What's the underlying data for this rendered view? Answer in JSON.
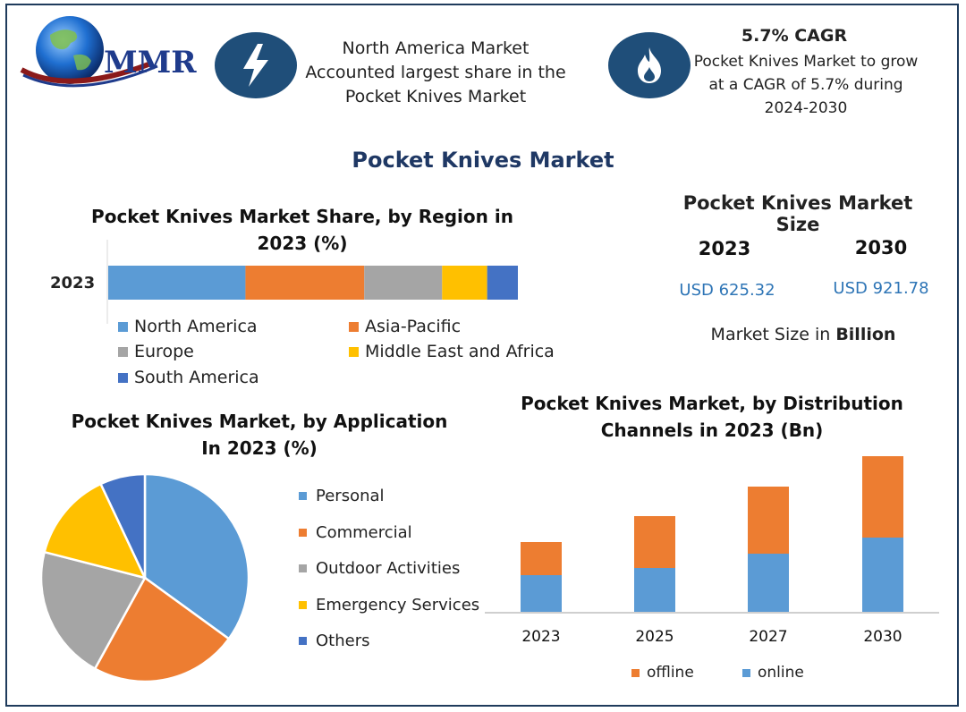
{
  "brand": {
    "name": "MMR"
  },
  "colors": {
    "blue": "#5b9bd5",
    "orange": "#ed7d31",
    "gray": "#a5a5a5",
    "yellow": "#ffc000",
    "darkblue": "#4472c4",
    "navy": "#1f4e79",
    "title": "#1f3864",
    "usd": "#2e75b6"
  },
  "info1": {
    "icon": "lightning-icon",
    "line1": "North America Market",
    "line2": "Accounted largest share in the",
    "line3": "Pocket Knives Market"
  },
  "info2": {
    "icon": "flame-icon",
    "heading": "5.7% CAGR",
    "line1": "Pocket Knives Market to grow",
    "line2": "at a CAGR of 5.7% during",
    "line3": "2024-2030"
  },
  "main_title": "Pocket Knives Market",
  "market_size": {
    "title": "Pocket Knives Market Size",
    "year1": "2023",
    "value1": "USD 625.32",
    "year2": "2030",
    "value2": "USD 921.78",
    "unit_prefix": "Market Size in ",
    "unit_bold": "Billion"
  },
  "region": {
    "title_line1": "Pocket Knives Market Share, by Region in",
    "title_line2": "2023 (%)",
    "row_label": "2023",
    "legend": [
      "North America",
      "Asia-Pacific",
      "Europe",
      "Middle East and Africa",
      "South America"
    ]
  },
  "application": {
    "title_line1": "Pocket Knives Market, by Application",
    "title_line2": "In 2023 (%)",
    "legend": [
      "Personal",
      "Commercial",
      "Outdoor Activities",
      "Emergency Services",
      "Others"
    ]
  },
  "distribution": {
    "title_line1": "Pocket Knives Market, by Distribution",
    "title_line2": "Channels in 2023 (Bn)",
    "legend": [
      "offline",
      "online"
    ],
    "years": [
      "2023",
      "2025",
      "2027",
      "2030"
    ]
  },
  "chart_data": [
    {
      "type": "bar",
      "orientation": "horizontal-stacked",
      "title": "Pocket Knives Market Share, by Region in 2023 (%)",
      "categories": [
        "2023"
      ],
      "series": [
        {
          "name": "North America",
          "values": [
            33.5
          ]
        },
        {
          "name": "Asia-Pacific",
          "values": [
            29
          ]
        },
        {
          "name": "Europe",
          "values": [
            19
          ]
        },
        {
          "name": "Middle East and Africa",
          "values": [
            11
          ]
        },
        {
          "name": "South America",
          "values": [
            7.5
          ]
        }
      ]
    },
    {
      "type": "pie",
      "title": "Pocket Knives Market, by Application In 2023 (%)",
      "categories": [
        "Personal",
        "Commercial",
        "Outdoor Activities",
        "Emergency Services",
        "Others"
      ],
      "values": [
        35,
        23,
        21,
        14,
        7
      ]
    },
    {
      "type": "bar",
      "orientation": "vertical-stacked",
      "title": "Pocket Knives Market, by Distribution Channels in 2023 (Bn)",
      "categories": [
        "2023",
        "2025",
        "2027",
        "2030"
      ],
      "series": [
        {
          "name": "online",
          "values": [
            41,
            49,
            65,
            83
          ]
        },
        {
          "name": "offline",
          "values": [
            37,
            58,
            75,
            91
          ]
        }
      ],
      "grid": false,
      "legend": "bottom"
    }
  ]
}
